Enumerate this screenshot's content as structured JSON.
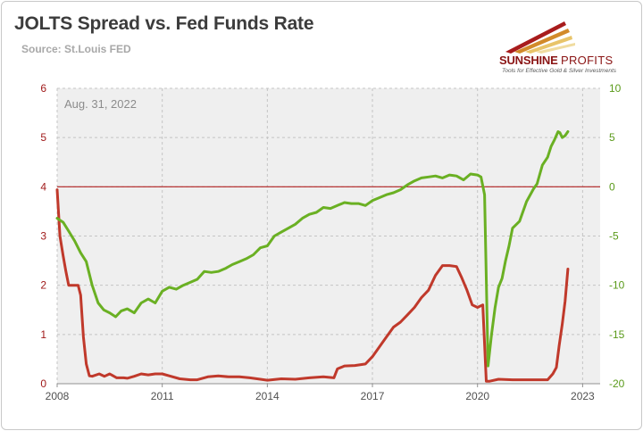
{
  "chart_data": {
    "type": "line",
    "title": "JOLTS Spread vs. Fed Funds Rate",
    "subtitle": "Source: St.Louis FED",
    "annotation": "Aug. 31, 2022",
    "x_range": [
      2008.0,
      2023.5
    ],
    "x_ticks": [
      "2008",
      "2011",
      "2014",
      "2017",
      "2020",
      "2023"
    ],
    "y_left": {
      "lim": [
        0,
        6
      ],
      "ticks": [
        "0",
        "1",
        "2",
        "3",
        "4",
        "5",
        "6"
      ],
      "color": "#a01a1a"
    },
    "y_right": {
      "lim": [
        -20,
        10
      ],
      "ticks": [
        "-20",
        "-15",
        "-10",
        "-5",
        "0",
        "5",
        "10"
      ],
      "color": "#5a9a1a"
    },
    "reference_line": {
      "axis": "right",
      "value": 0,
      "color": "#b02020"
    },
    "grid": true,
    "legend": "none",
    "series": [
      {
        "axis": "left",
        "color": "#c0392b",
        "points": [
          [
            2008.0,
            3.94
          ],
          [
            2008.08,
            3.0
          ],
          [
            2008.17,
            2.6
          ],
          [
            2008.25,
            2.28
          ],
          [
            2008.33,
            2.0
          ],
          [
            2008.5,
            2.0
          ],
          [
            2008.6,
            2.0
          ],
          [
            2008.67,
            1.8
          ],
          [
            2008.75,
            0.95
          ],
          [
            2008.83,
            0.4
          ],
          [
            2008.92,
            0.16
          ],
          [
            2009.0,
            0.15
          ],
          [
            2009.2,
            0.2
          ],
          [
            2009.35,
            0.15
          ],
          [
            2009.5,
            0.2
          ],
          [
            2009.7,
            0.12
          ],
          [
            2009.9,
            0.12
          ],
          [
            2010.0,
            0.11
          ],
          [
            2010.2,
            0.15
          ],
          [
            2010.4,
            0.2
          ],
          [
            2010.6,
            0.18
          ],
          [
            2010.8,
            0.2
          ],
          [
            2011.0,
            0.2
          ],
          [
            2011.2,
            0.16
          ],
          [
            2011.5,
            0.1
          ],
          [
            2011.8,
            0.08
          ],
          [
            2012.0,
            0.08
          ],
          [
            2012.3,
            0.14
          ],
          [
            2012.6,
            0.16
          ],
          [
            2012.9,
            0.14
          ],
          [
            2013.2,
            0.14
          ],
          [
            2013.5,
            0.12
          ],
          [
            2013.8,
            0.09
          ],
          [
            2014.0,
            0.07
          ],
          [
            2014.4,
            0.1
          ],
          [
            2014.8,
            0.09
          ],
          [
            2015.2,
            0.12
          ],
          [
            2015.6,
            0.14
          ],
          [
            2015.9,
            0.12
          ],
          [
            2016.0,
            0.3
          ],
          [
            2016.2,
            0.36
          ],
          [
            2016.5,
            0.37
          ],
          [
            2016.8,
            0.4
          ],
          [
            2017.0,
            0.55
          ],
          [
            2017.2,
            0.75
          ],
          [
            2017.4,
            0.95
          ],
          [
            2017.6,
            1.15
          ],
          [
            2017.8,
            1.25
          ],
          [
            2018.0,
            1.4
          ],
          [
            2018.2,
            1.55
          ],
          [
            2018.4,
            1.75
          ],
          [
            2018.6,
            1.9
          ],
          [
            2018.8,
            2.2
          ],
          [
            2019.0,
            2.4
          ],
          [
            2019.2,
            2.4
          ],
          [
            2019.4,
            2.38
          ],
          [
            2019.55,
            2.15
          ],
          [
            2019.7,
            1.9
          ],
          [
            2019.85,
            1.6
          ],
          [
            2020.0,
            1.55
          ],
          [
            2020.15,
            1.6
          ],
          [
            2020.25,
            0.05
          ],
          [
            2020.35,
            0.05
          ],
          [
            2020.6,
            0.09
          ],
          [
            2021.0,
            0.08
          ],
          [
            2021.5,
            0.08
          ],
          [
            2022.0,
            0.08
          ],
          [
            2022.15,
            0.2
          ],
          [
            2022.25,
            0.33
          ],
          [
            2022.33,
            0.77
          ],
          [
            2022.42,
            1.21
          ],
          [
            2022.5,
            1.68
          ],
          [
            2022.58,
            2.33
          ]
        ]
      },
      {
        "axis": "right",
        "color": "#6ab023",
        "points": [
          [
            2008.0,
            -3.2
          ],
          [
            2008.17,
            -3.6
          ],
          [
            2008.33,
            -4.5
          ],
          [
            2008.5,
            -5.5
          ],
          [
            2008.67,
            -6.7
          ],
          [
            2008.83,
            -7.6
          ],
          [
            2009.0,
            -10.0
          ],
          [
            2009.17,
            -11.8
          ],
          [
            2009.33,
            -12.5
          ],
          [
            2009.5,
            -12.8
          ],
          [
            2009.67,
            -13.2
          ],
          [
            2009.83,
            -12.6
          ],
          [
            2010.0,
            -12.4
          ],
          [
            2010.2,
            -12.8
          ],
          [
            2010.4,
            -11.8
          ],
          [
            2010.6,
            -11.4
          ],
          [
            2010.8,
            -11.8
          ],
          [
            2011.0,
            -10.6
          ],
          [
            2011.2,
            -10.2
          ],
          [
            2011.4,
            -10.4
          ],
          [
            2011.6,
            -10.0
          ],
          [
            2011.8,
            -9.7
          ],
          [
            2012.0,
            -9.4
          ],
          [
            2012.2,
            -8.6
          ],
          [
            2012.4,
            -8.7
          ],
          [
            2012.6,
            -8.6
          ],
          [
            2012.8,
            -8.3
          ],
          [
            2013.0,
            -7.9
          ],
          [
            2013.2,
            -7.6
          ],
          [
            2013.4,
            -7.3
          ],
          [
            2013.6,
            -6.9
          ],
          [
            2013.8,
            -6.2
          ],
          [
            2014.0,
            -6.0
          ],
          [
            2014.2,
            -5.0
          ],
          [
            2014.4,
            -4.6
          ],
          [
            2014.6,
            -4.2
          ],
          [
            2014.8,
            -3.8
          ],
          [
            2015.0,
            -3.2
          ],
          [
            2015.2,
            -2.8
          ],
          [
            2015.4,
            -2.6
          ],
          [
            2015.6,
            -2.1
          ],
          [
            2015.8,
            -2.2
          ],
          [
            2016.0,
            -1.9
          ],
          [
            2016.2,
            -1.6
          ],
          [
            2016.4,
            -1.7
          ],
          [
            2016.6,
            -1.7
          ],
          [
            2016.8,
            -1.9
          ],
          [
            2017.0,
            -1.4
          ],
          [
            2017.2,
            -1.1
          ],
          [
            2017.4,
            -0.8
          ],
          [
            2017.6,
            -0.6
          ],
          [
            2017.8,
            -0.3
          ],
          [
            2018.0,
            0.2
          ],
          [
            2018.2,
            0.6
          ],
          [
            2018.4,
            0.9
          ],
          [
            2018.6,
            1.0
          ],
          [
            2018.8,
            1.1
          ],
          [
            2019.0,
            0.9
          ],
          [
            2019.2,
            1.2
          ],
          [
            2019.4,
            1.1
          ],
          [
            2019.6,
            0.7
          ],
          [
            2019.8,
            1.3
          ],
          [
            2020.0,
            1.2
          ],
          [
            2020.1,
            1.0
          ],
          [
            2020.2,
            -0.8
          ],
          [
            2020.3,
            -18.2
          ],
          [
            2020.4,
            -15.0
          ],
          [
            2020.5,
            -12.3
          ],
          [
            2020.6,
            -10.2
          ],
          [
            2020.7,
            -9.3
          ],
          [
            2020.8,
            -7.5
          ],
          [
            2020.9,
            -6.0
          ],
          [
            2021.0,
            -4.2
          ],
          [
            2021.2,
            -3.5
          ],
          [
            2021.4,
            -1.5
          ],
          [
            2021.6,
            -0.2
          ],
          [
            2021.7,
            0.3
          ],
          [
            2021.85,
            2.2
          ],
          [
            2022.0,
            3.0
          ],
          [
            2022.1,
            4.1
          ],
          [
            2022.2,
            4.8
          ],
          [
            2022.3,
            5.6
          ],
          [
            2022.35,
            5.5
          ],
          [
            2022.42,
            5.0
          ],
          [
            2022.5,
            5.2
          ],
          [
            2022.58,
            5.6
          ]
        ]
      }
    ]
  },
  "logo": {
    "name_bold": "SUNSHINE",
    "name_thin": "PROFITS",
    "tagline": "Tools for Effective Gold & Silver Investments"
  }
}
